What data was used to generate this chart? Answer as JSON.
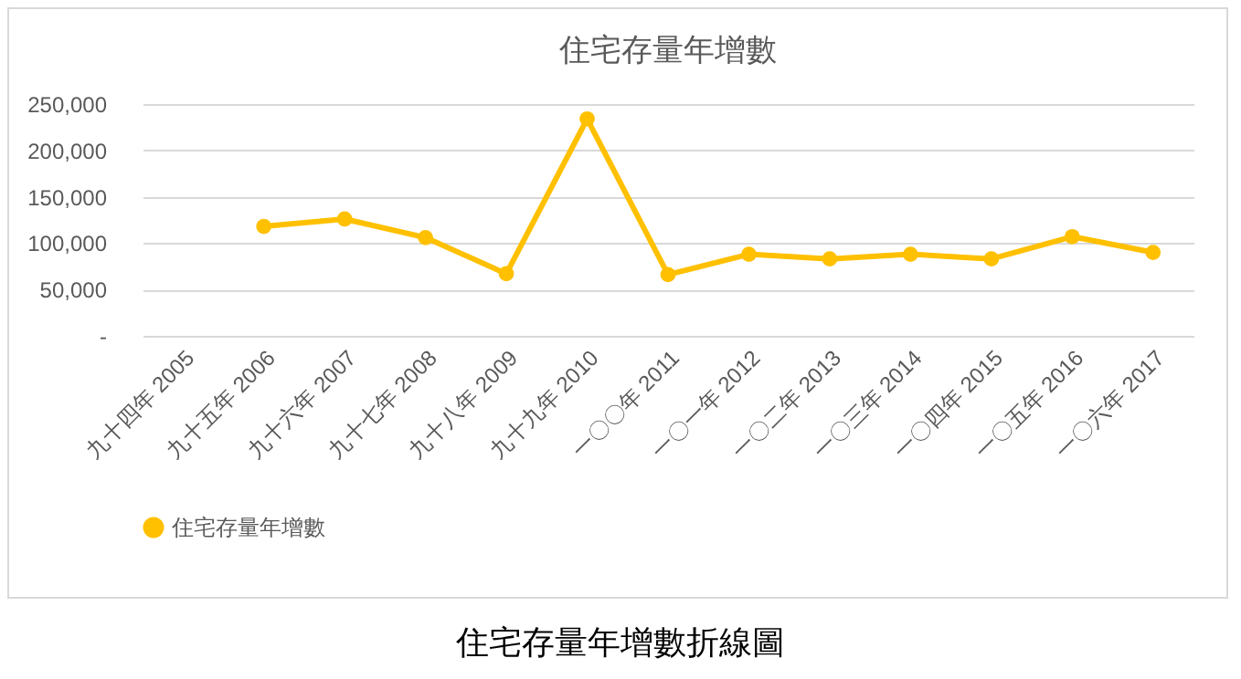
{
  "chart_data": {
    "type": "line",
    "title": "住宅存量年增數",
    "categories": [
      "九十四年 2005",
      "九十五年 2006",
      "九十六年 2007",
      "九十七年 2008",
      "九十八年 2009",
      "九十九年 2010",
      "一〇〇年 2011",
      "一〇一年 2012",
      "一〇二年 2013",
      "一〇三年 2014",
      "一〇四年 2015",
      "一〇五年 2016",
      "一〇六年 2017"
    ],
    "series": [
      {
        "name": "住宅存量年增數",
        "color": "#ffc000",
        "values": [
          null,
          118000,
          126000,
          106000,
          67000,
          234000,
          66000,
          88000,
          83000,
          88000,
          83000,
          107000,
          90000
        ]
      }
    ],
    "ylim": [
      0,
      250000
    ],
    "yticks": [
      {
        "value": 0,
        "label": "-"
      },
      {
        "value": 50000,
        "label": "50,000"
      },
      {
        "value": 100000,
        "label": "100,000"
      },
      {
        "value": 150000,
        "label": "150,000"
      },
      {
        "value": 200000,
        "label": "200,000"
      },
      {
        "value": 250000,
        "label": "250,000"
      }
    ],
    "grid": "y",
    "legend": "bottom",
    "marker": "circle",
    "line_style": "solid",
    "annotations": [
      "住宅存量年增數折線圖"
    ]
  }
}
